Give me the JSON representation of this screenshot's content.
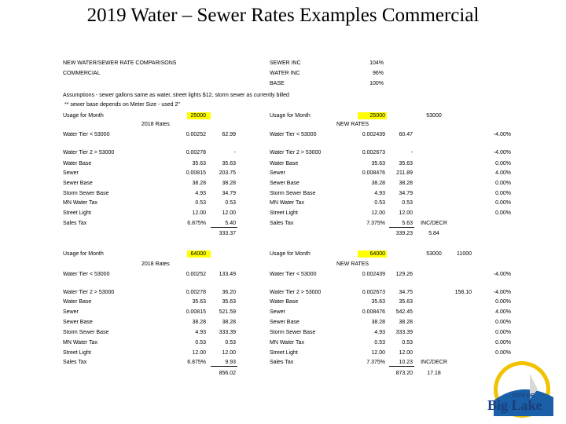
{
  "header": {
    "title": "2019 Water – Sewer Rates Examples Commercial"
  },
  "summary": {
    "left": [
      "NEW WATER/SEWER RATE COMPARISONS",
      "COMMERCIAL"
    ],
    "right": [
      [
        "SEWER INC",
        "104%"
      ],
      [
        "WATER INC",
        "96%"
      ],
      [
        "BASE",
        "100%"
      ]
    ]
  },
  "assumptions": [
    "Assumptions - sewer gallons same as water, street lights $12, storm sewer as currently billed",
    "** sewer base depends on Meter Size - used 2\""
  ],
  "blocks": [
    {
      "old_heading": "2018 Rates",
      "new_heading": "NEW RATES",
      "rows": [
        [
          "Usage for Month",
          "25000",
          null,
          "Usage for Month",
          "25000",
          null,
          "53000",
          null,
          null
        ],
        [
          "Water Tier < 53000",
          "0.00252",
          "62.99",
          "Water Tier < 53000",
          "0.002439",
          "60.47",
          null,
          null,
          "-4.00%"
        ],
        [
          "Water Tier 2 > 53000",
          "0.00278",
          "-",
          "Water Tier 2 > 53000",
          "0.002673",
          "-",
          null,
          null,
          "-4.00%"
        ],
        [
          "Water Base",
          "35.63",
          "35.63",
          "Water Base",
          "35.63",
          "35.63",
          null,
          null,
          "0.00%"
        ],
        [
          "Sewer",
          "0.00815",
          "203.75",
          "Sewer",
          "0.008476",
          "211.89",
          null,
          null,
          "4.00%"
        ],
        [
          "Sewer Base",
          "38.28",
          "38.28",
          "Sewer Base",
          "38.28",
          "38.28",
          null,
          null,
          "0.00%"
        ],
        [
          "Storm Sewer Base",
          "4.93",
          "34.79",
          "Storm Sewer Base",
          "4.93",
          "34.79",
          null,
          null,
          "0.00%"
        ],
        [
          "MN Water Tax",
          "0.53",
          "0.53",
          "MN Water Tax",
          "0.53",
          "0.53",
          null,
          null,
          "0.00%"
        ],
        [
          "Street Light",
          "12.00",
          "12.00",
          "Street Light",
          "12.00",
          "12.00",
          null,
          null,
          "0.00%"
        ],
        [
          "Sales Tax",
          "6.875%",
          "5.40",
          "Sales Tax",
          "7.375%",
          "5.63",
          "INC/DECR",
          null,
          null
        ],
        [
          null,
          null,
          "333.37",
          null,
          null,
          "339.23",
          "5.84",
          null,
          null
        ]
      ]
    },
    {
      "old_heading": "2018 Rates",
      "new_heading": "NEW RATES",
      "rows": [
        [
          "Usage for Month",
          "64000",
          null,
          "Usage for Month",
          "64000",
          null,
          "53000",
          "11000",
          null
        ],
        [
          "Water Tier < 53000",
          "0.00252",
          "133.49",
          "Water Tier < 53000",
          "0.002439",
          "129.26",
          null,
          null,
          "-4.00%"
        ],
        [
          "Water Tier 2 > 53000",
          "0.00278",
          "36.20",
          "Water Tier 2 > 53000",
          "0.002673",
          "34.75",
          null,
          "158.10",
          "-4.00%"
        ],
        [
          "Water Base",
          "35.63",
          "35.63",
          "Water Base",
          "35.63",
          "35.63",
          null,
          null,
          "0.00%"
        ],
        [
          "Sewer",
          "0.00815",
          "521.59",
          "Sewer",
          "0.008476",
          "542.45",
          null,
          null,
          "4.00%"
        ],
        [
          "Sewer Base",
          "38.28",
          "38.28",
          "Sewer Base",
          "38.28",
          "38.28",
          null,
          null,
          "0.00%"
        ],
        [
          "Storm Sewer Base",
          "4.93",
          "333.39",
          "Storm Sewer Base",
          "4.93",
          "333.39",
          null,
          null,
          "0.00%"
        ],
        [
          "MN Water Tax",
          "0.53",
          "0.53",
          "MN Water Tax",
          "0.53",
          "0.53",
          null,
          null,
          "0.00%"
        ],
        [
          "Street Light",
          "12.00",
          "12.00",
          "Street Light",
          "12.00",
          "12.00",
          null,
          null,
          "0.00%"
        ],
        [
          "Sales Tax",
          "6.875%",
          "9.93",
          "Sales Tax",
          "7.375%",
          "10.23",
          "INC/DECR",
          null,
          null
        ],
        [
          null,
          null,
          "856.02",
          null,
          null,
          "873.20",
          "17.18",
          null,
          null
        ]
      ]
    }
  ],
  "logo": {
    "line1": "CITY OF",
    "line2": "Big Lake"
  }
}
